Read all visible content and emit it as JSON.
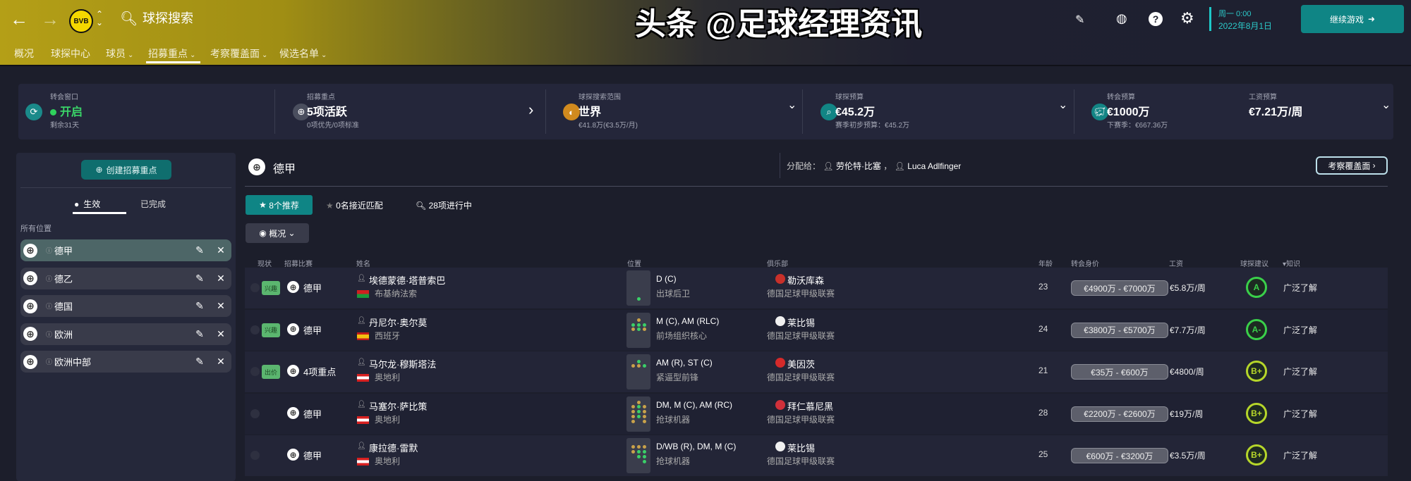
{
  "header": {
    "title": "球探搜索",
    "club_logo": "BVB 09",
    "nav": [
      {
        "label": "概况",
        "dropdown": false
      },
      {
        "label": "球探中心",
        "dropdown": false
      },
      {
        "label": "球员",
        "dropdown": true
      },
      {
        "label": "招募重点",
        "dropdown": true,
        "active": true
      },
      {
        "label": "考察覆盖面",
        "dropdown": true
      },
      {
        "label": "候选名单",
        "dropdown": true
      }
    ],
    "date_line1": "周一 0:00",
    "date_line2": "2022年8月1日",
    "continue_label": "继续游戏"
  },
  "summary": [
    {
      "label": "转会窗口",
      "value": "开启",
      "sub": "剩余31天",
      "icon": "refresh-icon",
      "status_color": "#2fd15c"
    },
    {
      "label": "招募重点",
      "value": "5项活跃",
      "sub": "0项优先/0项标准",
      "icon": "crosshair-icon"
    },
    {
      "label": "球探搜索范围",
      "value": "世界",
      "sub": "€41.8万(€3.5万/月)",
      "icon": "globe-icon"
    },
    {
      "label": "球探预算",
      "value": "€45.2万",
      "sub": "赛季初步预算：€45.2万",
      "icon": "search-icon"
    },
    {
      "label": "转会预算",
      "value": "€1000万",
      "sub": "下赛季：€667.36万",
      "icon": "piggy-bank-icon"
    },
    {
      "label": "工资预算",
      "value": "€7.21万/周"
    }
  ],
  "left": {
    "create_label": "创建招募重点",
    "tabs": [
      "生效",
      "已完成"
    ],
    "section_label": "所有位置",
    "items": [
      "德甲",
      "德乙",
      "德国",
      "欧洲",
      "欧洲中部"
    ]
  },
  "main": {
    "title": "德甲",
    "assigned_label": "分配给：",
    "scouts": [
      "劳伦特·比塞",
      "Luca Adlfinger"
    ],
    "coverage_button": "考察覆盖面",
    "tabs": [
      "8个推荐",
      "0名接近匹配",
      "28项进行中"
    ],
    "view_label": "概况",
    "columns": [
      "现状",
      "招募比赛",
      "姓名",
      "位置",
      "俱乐部",
      "年龄",
      "转会身价",
      "工资",
      "球探建议",
      "▾知识"
    ],
    "rows": [
      {
        "badge": "兴趣",
        "comp": "德甲",
        "name": "埃德蒙德·塔普索巴",
        "nation": "布基纳法索",
        "flag": "burkina",
        "pos": "D (C)",
        "role": "出球后卫",
        "club": "勒沃库森",
        "league": "德国足球甲级联赛",
        "age": "23",
        "value": "€4900万 - €7000万",
        "wage": "€5.8万/周",
        "rating": "A",
        "knowledge": "广泛了解"
      },
      {
        "badge": "兴趣",
        "comp": "德甲",
        "name": "丹尼尔·奥尔莫",
        "nation": "西班牙",
        "flag": "spain",
        "pos": "M (C), AM (RLC)",
        "role": "前场组织核心",
        "club": "莱比锡",
        "league": "德国足球甲级联赛",
        "age": "24",
        "value": "€3800万 - €5700万",
        "wage": "€7.7万/周",
        "rating": "A-",
        "knowledge": "广泛了解"
      },
      {
        "badge": "出价",
        "comp": "4项重点",
        "name": "马尔龙·穆斯塔法",
        "nation": "奥地利",
        "flag": "austria",
        "pos": "AM (R), ST (C)",
        "role": "紧逼型前锋",
        "club": "美因茨",
        "league": "德国足球甲级联赛",
        "age": "21",
        "value": "€35万 - €600万",
        "wage": "€4800/周",
        "rating": "B+",
        "knowledge": "广泛了解"
      },
      {
        "badge": "",
        "comp": "德甲",
        "name": "马塞尔·萨比策",
        "nation": "奥地利",
        "flag": "austria",
        "pos": "DM, M (C), AM (RC)",
        "role": "抢球机器",
        "club": "拜仁慕尼黑",
        "league": "德国足球甲级联赛",
        "age": "28",
        "value": "€2200万 - €2600万",
        "wage": "€19万/周",
        "rating": "B+",
        "knowledge": "广泛了解"
      },
      {
        "badge": "",
        "comp": "德甲",
        "name": "康拉德·雷默",
        "nation": "奥地利",
        "flag": "austria",
        "pos": "D/WB (R), DM, M (C)",
        "role": "抢球机器",
        "club": "莱比锡",
        "league": "德国足球甲级联赛",
        "age": "25",
        "value": "€600万 - €3200万",
        "wage": "€3.5万/周",
        "rating": "B+",
        "knowledge": "广泛了解"
      }
    ]
  },
  "watermark": "头条 @足球经理资讯",
  "colors": {
    "accent": "#0f8a8a",
    "rating_a": "#3ad04a",
    "rating_b": "#b6d62a",
    "badge": "#5bb66f"
  }
}
